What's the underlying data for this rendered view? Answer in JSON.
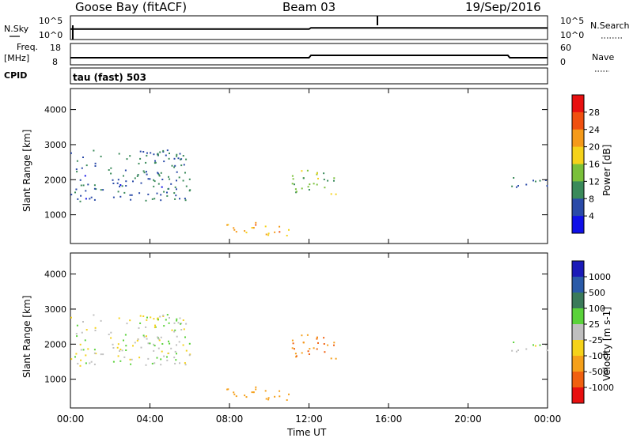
{
  "header": {
    "station": "Goose Bay (fitACF)",
    "beam": "Beam 03",
    "date": "19/Sep/2016"
  },
  "left_labels": {
    "nsky": "N.Sky",
    "freq_line1": "Freq.",
    "freq_line2": "[MHz]",
    "cpid": "CPID"
  },
  "right_labels": {
    "nsearch": "N.Search",
    "nave": "Nave"
  },
  "noise_panel": {
    "ticks_left": [
      "10^5",
      "10^0"
    ],
    "ticks_right": [
      "10^5",
      "10^0"
    ]
  },
  "freq_panel": {
    "ticks_left": [
      "18",
      "8"
    ],
    "ticks_right": [
      "60",
      "0"
    ]
  },
  "cpid_panel": {
    "text": "tau (fast) 503"
  },
  "power_panel": {
    "ylabel": "Slant Range [km]",
    "colorbar_label": "Power [dB]",
    "colorbar_ticks": [
      "28",
      "24",
      "20",
      "16",
      "12",
      "8",
      "4"
    ],
    "colors": [
      "#e81010",
      "#f05010",
      "#f59a1a",
      "#f5d21a",
      "#7ac03a",
      "#3a8a5a",
      "#2a4aa8",
      "#1010e8"
    ]
  },
  "velocity_panel": {
    "ylabel": "Slant Range [km]",
    "colorbar_label": "Velocity [m s-1]",
    "colorbar_ticks": [
      "1000",
      "500",
      "100",
      "25",
      "-25",
      "-100",
      "-500",
      "-1000"
    ],
    "colors": [
      "#1a1ab8",
      "#2a5aa8",
      "#3a7a5a",
      "#5ad23a",
      "#bfbfbf",
      "#f5d21a",
      "#f5a01a",
      "#f06010",
      "#e81010"
    ]
  },
  "xaxis": {
    "label": "Time UT",
    "ticks": [
      "00:00",
      "04:00",
      "08:00",
      "12:00",
      "16:00",
      "20:00",
      "00:00"
    ]
  },
  "chart_data": [
    {
      "type": "line",
      "title": "N.Sky / N.Search noise",
      "x_unit": "hours UT",
      "xlim": [
        0,
        24
      ],
      "log_scale": true,
      "series": [
        {
          "name": "N.Sky",
          "x": [
            0,
            4,
            8,
            12,
            12.1,
            16,
            20,
            24
          ],
          "y": [
            1000,
            1000,
            1000,
            1000,
            3000,
            3000,
            2500,
            2500
          ]
        }
      ]
    },
    {
      "type": "line",
      "title": "Freq. / Nave",
      "x_unit": "hours UT",
      "xlim": [
        0,
        24
      ],
      "series": [
        {
          "name": "Freq",
          "x": [
            0,
            12,
            12.1,
            22,
            22.1,
            24
          ],
          "y": [
            11,
            11,
            12.5,
            12.5,
            11,
            11
          ]
        }
      ]
    },
    {
      "type": "heatmap",
      "title": "Power [dB]",
      "xlabel": "Time UT",
      "ylabel": "Slant Range [km]",
      "xlim": [
        0,
        24
      ],
      "ylim": [
        180,
        4600
      ],
      "yticks": [
        1000,
        2000,
        3000,
        4000
      ],
      "clim": [
        0,
        30
      ],
      "features": [
        {
          "region": "early arc",
          "time_range": [
            0,
            6.0
          ],
          "range_km": [
            1400,
            2900
          ],
          "value": 6
        },
        {
          "region": "morning echo",
          "time_range": [
            7.8,
            11.0
          ],
          "range_km": [
            400,
            800
          ],
          "value": 20
        },
        {
          "region": "post-noon",
          "time_range": [
            11.0,
            13.5
          ],
          "range_km": [
            1600,
            2300
          ],
          "value": 12
        },
        {
          "region": "evening",
          "time_range": [
            22.0,
            24.0
          ],
          "range_km": [
            1800,
            2100
          ],
          "value": 6
        }
      ]
    },
    {
      "type": "heatmap",
      "title": "Velocity [m s-1]",
      "xlabel": "Time UT",
      "ylabel": "Slant Range [km]",
      "xlim": [
        0,
        24
      ],
      "ylim": [
        180,
        4600
      ],
      "yticks": [
        1000,
        2000,
        3000,
        4000
      ],
      "clim": [
        -1000,
        1000
      ],
      "features": [
        {
          "region": "early arc",
          "time_range": [
            0,
            6.0
          ],
          "range_km": [
            1400,
            2900
          ],
          "value": 0
        },
        {
          "region": "morning echo",
          "time_range": [
            7.8,
            11.0
          ],
          "range_km": [
            400,
            800
          ],
          "value": -100
        },
        {
          "region": "post-noon",
          "time_range": [
            11.0,
            13.5
          ],
          "range_km": [
            1600,
            2300
          ],
          "value": -300
        },
        {
          "region": "evening",
          "time_range": [
            22.0,
            24.0
          ],
          "range_km": [
            1800,
            2100
          ],
          "value": 0
        }
      ]
    }
  ]
}
